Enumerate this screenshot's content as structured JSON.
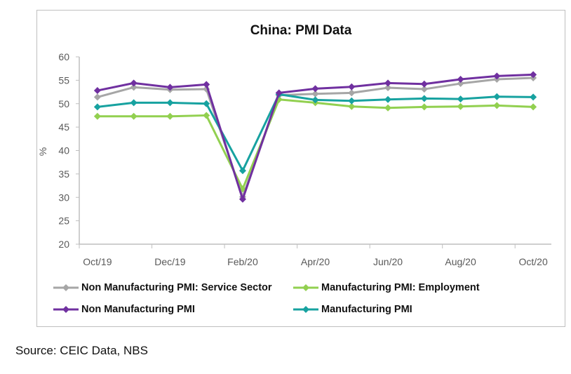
{
  "chart_data": {
    "type": "line",
    "title": "China: PMI Data",
    "ylabel": "%",
    "xlabel": "",
    "ylim": [
      20,
      60
    ],
    "yticks": [
      20,
      25,
      30,
      35,
      40,
      45,
      50,
      55,
      60
    ],
    "categories": [
      "Oct/19",
      "Nov/19",
      "Dec/19",
      "Jan/20",
      "Feb/20",
      "Mar/20",
      "Apr/20",
      "May/20",
      "Jun/20",
      "Jul/20",
      "Aug/20",
      "Sep/20",
      "Oct/20"
    ],
    "xtick_labels": [
      "Oct/19",
      "Dec/19",
      "Feb/20",
      "Apr/20",
      "Jun/20",
      "Aug/20",
      "Oct/20"
    ],
    "grid": false,
    "legend_position": "bottom",
    "series": [
      {
        "name": "Non Manufacturing PMI: Service Sector",
        "color": "#a6a6a6",
        "values": [
          51.4,
          53.5,
          53.0,
          53.1,
          30.1,
          51.8,
          52.1,
          52.3,
          53.4,
          53.1,
          54.3,
          55.2,
          55.5
        ]
      },
      {
        "name": "Manufacturing PMI: Employment",
        "color": "#92d050",
        "values": [
          47.3,
          47.3,
          47.3,
          47.5,
          31.8,
          50.9,
          50.2,
          49.4,
          49.1,
          49.3,
          49.4,
          49.6,
          49.3
        ]
      },
      {
        "name": "Manufacturing PMI",
        "color": "#17a2a0",
        "values": [
          49.3,
          50.2,
          50.2,
          50.0,
          35.7,
          52.0,
          50.8,
          50.6,
          50.9,
          51.1,
          51.0,
          51.5,
          51.4
        ]
      },
      {
        "name": "Non Manufacturing PMI",
        "color": "#7030a0",
        "values": [
          52.8,
          54.4,
          53.5,
          54.1,
          29.6,
          52.3,
          53.2,
          53.6,
          54.4,
          54.2,
          55.2,
          55.9,
          56.2
        ]
      }
    ]
  },
  "source": "Source: CEIC Data, NBS"
}
